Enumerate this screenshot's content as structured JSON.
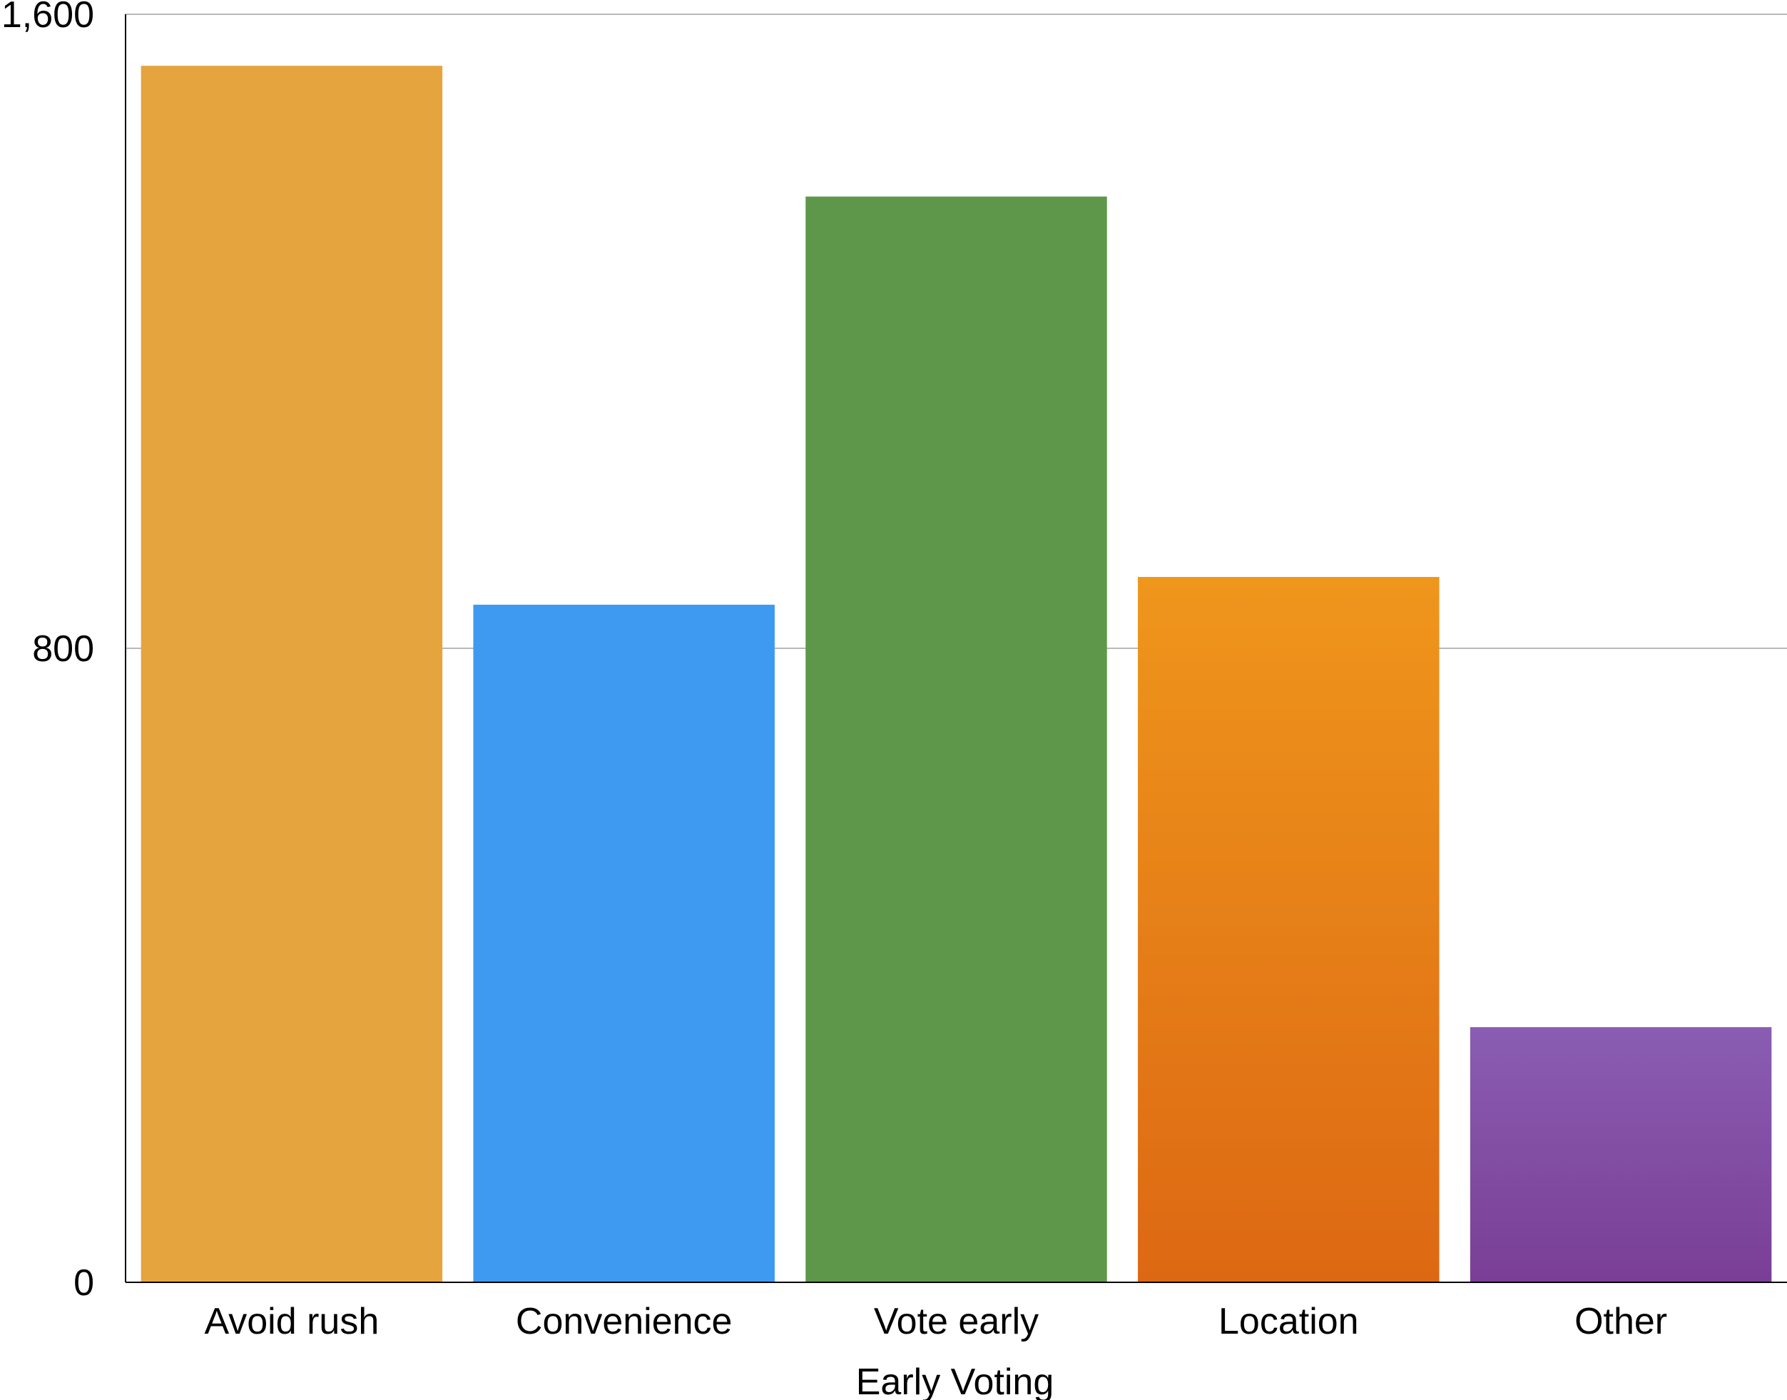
{
  "chart_data": {
    "type": "bar",
    "title": "",
    "xlabel": "Early Voting",
    "ylabel": "",
    "ylim": [
      0,
      1600
    ],
    "yticks": [
      0,
      800,
      1600
    ],
    "ytick_labels": [
      "0",
      "800",
      "1,600"
    ],
    "grid": true,
    "legend": "none",
    "categories": [
      "Avoid rush",
      "Convenience",
      "Vote early",
      "Location",
      "Other"
    ],
    "values": [
      1535,
      855,
      1370,
      890,
      322
    ],
    "colors": [
      {
        "top": "#e6a43f",
        "bottom": "#e6a43f"
      },
      {
        "top": "#3d9af0",
        "bottom": "#3d9af0"
      },
      {
        "top": "#5e974a",
        "bottom": "#5e974a"
      },
      {
        "top": "#ef961c",
        "bottom": "#dd6813"
      },
      {
        "top": "#8a5db2",
        "bottom": "#7a3e96"
      }
    ]
  }
}
